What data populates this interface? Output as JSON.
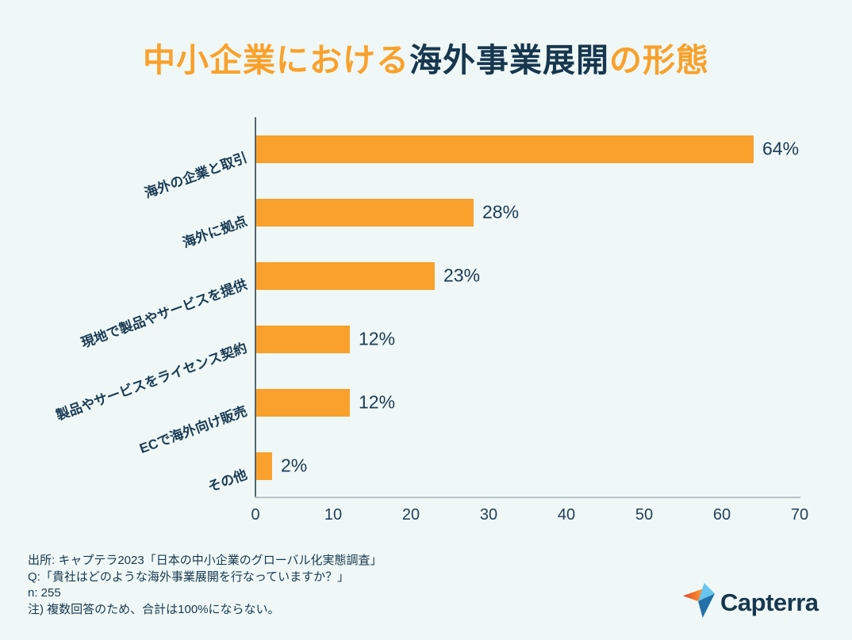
{
  "title": {
    "parts": [
      {
        "text": "中小企業における",
        "color": "#F9A12C"
      },
      {
        "text": "海外事業展開",
        "color": "#17374F"
      },
      {
        "text": "の形態",
        "color": "#F9A12C"
      }
    ]
  },
  "chart_data": {
    "type": "bar",
    "orientation": "horizontal",
    "categories": [
      "海外の企業と取引",
      "海外に拠点",
      "現地で製品やサービスを提供",
      "製品やサービスをライセンス契約",
      "ECで海外向け販売",
      "その他"
    ],
    "values": [
      64,
      28,
      23,
      12,
      12,
      2
    ],
    "value_labels": [
      "64%",
      "28%",
      "23%",
      "12%",
      "12%",
      "2%"
    ],
    "xlim": [
      0,
      70
    ],
    "xticks": [
      0,
      10,
      20,
      30,
      40,
      50,
      60,
      70
    ],
    "bar_color": "#F9A12C",
    "grid": false,
    "legend": null,
    "xlabel": "",
    "ylabel": ""
  },
  "footer": {
    "lines": [
      "出所: キャプテラ2023「日本の中小企業のグローバル化実態調査」",
      "Q:「貴社はどのような海外事業展開を行なっていますか？」",
      "n: 255",
      "注) 複数回答のため、合計は100%にならない。"
    ]
  },
  "logo": {
    "text": "Capterra",
    "icon": "capterra-arrow-icon",
    "icon_colors": {
      "red": "#E8442E",
      "orange": "#FF9D28",
      "light_blue": "#68C5ED",
      "navy": "#2470A8",
      "deep_navy": "#1B5A8C"
    },
    "text_color": "#17374F"
  },
  "colors": {
    "background": "#EFF8F6",
    "bar": "#F9A12C",
    "text_navy": "#1A3A54",
    "axis_y": "#56656d",
    "axis_x": "#b9c1c5"
  }
}
